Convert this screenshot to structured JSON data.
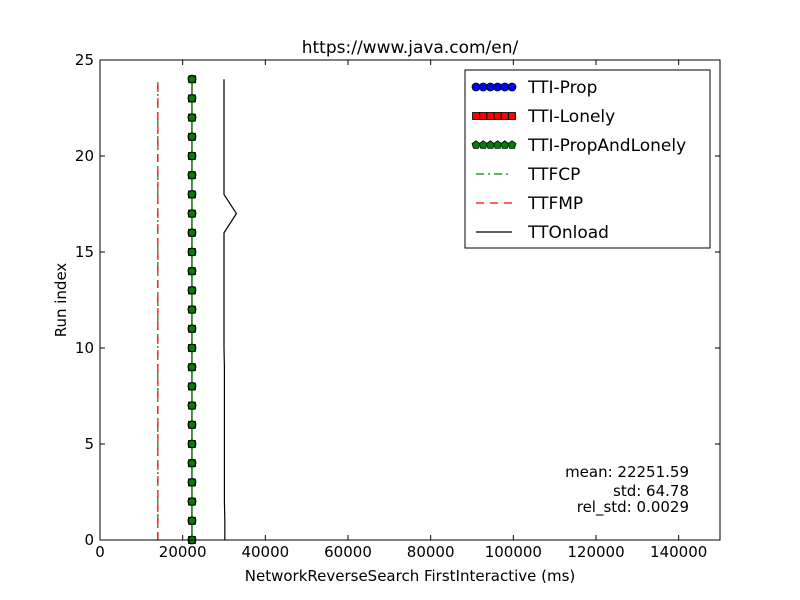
{
  "chart_data": {
    "type": "line",
    "title": "https://www.java.com/en/",
    "xlabel": "NetworkReverseSearch FirstInteractive (ms)",
    "ylabel": "Run index",
    "xlim": [
      0,
      150000
    ],
    "ylim": [
      0,
      25
    ],
    "xticks": [
      0,
      20000,
      40000,
      60000,
      80000,
      100000,
      120000,
      140000
    ],
    "xtick_labels": [
      "0",
      "20000",
      "40000",
      "60000",
      "80000",
      "100000",
      "120000",
      "140000"
    ],
    "yticks": [
      0,
      5,
      10,
      15,
      20,
      25
    ],
    "ytick_labels": [
      "0",
      "5",
      "10",
      "15",
      "20",
      "25"
    ],
    "grid": false,
    "legend_position": "top-right",
    "series": [
      {
        "name": "TTI-Prop",
        "color": "#0000ff",
        "line_style": "solid",
        "marker": "circle",
        "y": [
          0,
          1,
          2,
          3,
          4,
          5,
          6,
          7,
          8,
          9,
          10,
          11,
          12,
          13,
          14,
          15,
          16,
          17,
          18,
          19,
          20,
          21,
          22,
          23,
          24
        ],
        "x": [
          22250,
          22250,
          22250,
          22250,
          22250,
          22250,
          22250,
          22250,
          22250,
          22250,
          22250,
          22250,
          22250,
          22250,
          22250,
          22250,
          22250,
          22250,
          22250,
          22250,
          22250,
          22250,
          22250,
          22250,
          22250
        ]
      },
      {
        "name": "TTI-Lonely",
        "color": "#ff0000",
        "line_style": "solid",
        "marker": "square",
        "y": [
          0,
          1,
          2,
          3,
          4,
          5,
          6,
          7,
          8,
          9,
          10,
          11,
          12,
          13,
          14,
          15,
          16,
          17,
          18,
          19,
          20,
          21,
          22,
          23,
          24
        ],
        "x": [
          22250,
          22250,
          22250,
          22250,
          22250,
          22250,
          22250,
          22250,
          22250,
          22250,
          22250,
          22250,
          22250,
          22250,
          22250,
          22250,
          22250,
          22250,
          22250,
          22250,
          22250,
          22250,
          22250,
          22250,
          22300
        ]
      },
      {
        "name": "TTI-PropAndLonely",
        "color": "#008000",
        "line_style": "solid",
        "marker": "pentagon",
        "y": [
          0,
          1,
          2,
          3,
          4,
          5,
          6,
          7,
          8,
          9,
          10,
          11,
          12,
          13,
          14,
          15,
          16,
          17,
          18,
          19,
          20,
          21,
          22,
          23,
          24
        ],
        "x": [
          22250,
          22250,
          22250,
          22250,
          22250,
          22250,
          22250,
          22250,
          22250,
          22250,
          22250,
          22250,
          22250,
          22250,
          22250,
          22250,
          22250,
          22250,
          22250,
          22250,
          22250,
          22250,
          22250,
          22250,
          22250
        ]
      },
      {
        "name": "TTFCP",
        "color": "#008000",
        "line_style": "dashdot",
        "marker": "none",
        "y": [
          0,
          1,
          2,
          3,
          4,
          5,
          6,
          7,
          8,
          9,
          10,
          11,
          12,
          13,
          14,
          15,
          16,
          17,
          18,
          19,
          20,
          21,
          22,
          23,
          24
        ],
        "x": [
          14000,
          14000,
          14000,
          14000,
          14000,
          14000,
          14000,
          14000,
          14000,
          14000,
          14000,
          14000,
          14000,
          14000,
          14000,
          14000,
          14000,
          14000,
          14000,
          14000,
          14000,
          14000,
          14000,
          14000,
          14000
        ]
      },
      {
        "name": "TTFMP",
        "color": "#ff0000",
        "line_style": "dashed",
        "marker": "none",
        "y": [
          0,
          1,
          2,
          3,
          4,
          5,
          6,
          7,
          8,
          9,
          10,
          11,
          12,
          13,
          14,
          15,
          16,
          17,
          18,
          19,
          20,
          21,
          22,
          23,
          24
        ],
        "x": [
          14000,
          14000,
          14000,
          14000,
          14000,
          14000,
          14000,
          14000,
          14000,
          14000,
          14000,
          14000,
          14000,
          14000,
          14000,
          14000,
          14000,
          14000,
          14000,
          14000,
          14000,
          14000,
          14000,
          14000,
          14000
        ]
      },
      {
        "name": "TTOnload",
        "color": "#000000",
        "line_style": "solid",
        "marker": "none",
        "y": [
          0,
          1,
          2,
          3,
          4,
          5,
          6,
          7,
          8,
          9,
          10,
          11,
          12,
          13,
          14,
          15,
          16,
          17,
          18,
          19,
          20,
          21,
          22,
          23,
          24
        ],
        "x": [
          30200,
          30200,
          30100,
          30100,
          30100,
          30100,
          30100,
          30100,
          30100,
          30100,
          30000,
          30000,
          30000,
          30000,
          30000,
          30000,
          30000,
          33000,
          30000,
          30000,
          30000,
          30000,
          30000,
          30000,
          30000
        ]
      }
    ],
    "annotations": {
      "mean": "mean: 22251.59",
      "std": "std: 64.78",
      "rel_std": "rel_std: 0.0029"
    }
  }
}
